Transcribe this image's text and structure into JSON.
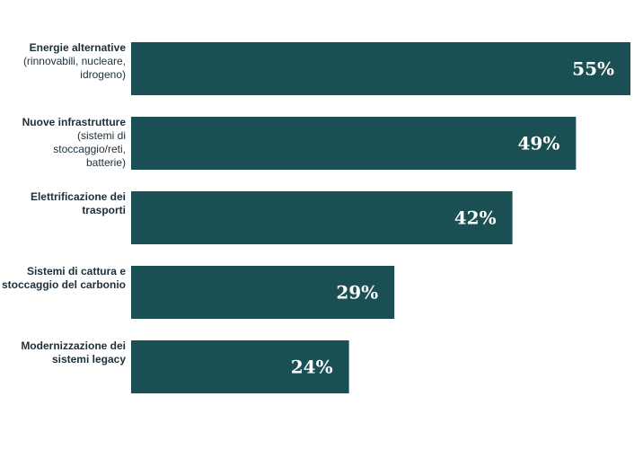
{
  "chart_data": {
    "type": "bar",
    "orientation": "horizontal",
    "bar_color": "#1a4f54",
    "value_label_color": "#ffffff",
    "xlim": [
      0,
      55
    ],
    "grid": false,
    "categories": [
      {
        "title": "Energie alternative",
        "detail": [
          "(rinnovabili, nucleare,",
          "idrogeno)"
        ]
      },
      {
        "title": "Nuove infrastrutture",
        "detail": [
          "(sistemi di",
          "stoccaggio/reti,",
          "batterie)"
        ]
      },
      {
        "title": "Elettrificazione dei",
        "title_cont": "trasporti",
        "detail": []
      },
      {
        "title": "Sistemi di cattura e",
        "title_cont": "stoccaggio del carbonio",
        "detail": []
      },
      {
        "title": "Modernizzazione dei",
        "title_cont": "sistemi legacy",
        "detail": []
      }
    ],
    "values": [
      55,
      49,
      42,
      29,
      24
    ],
    "value_labels": [
      "55%",
      "49%",
      "42%",
      "29%",
      "24%"
    ]
  }
}
